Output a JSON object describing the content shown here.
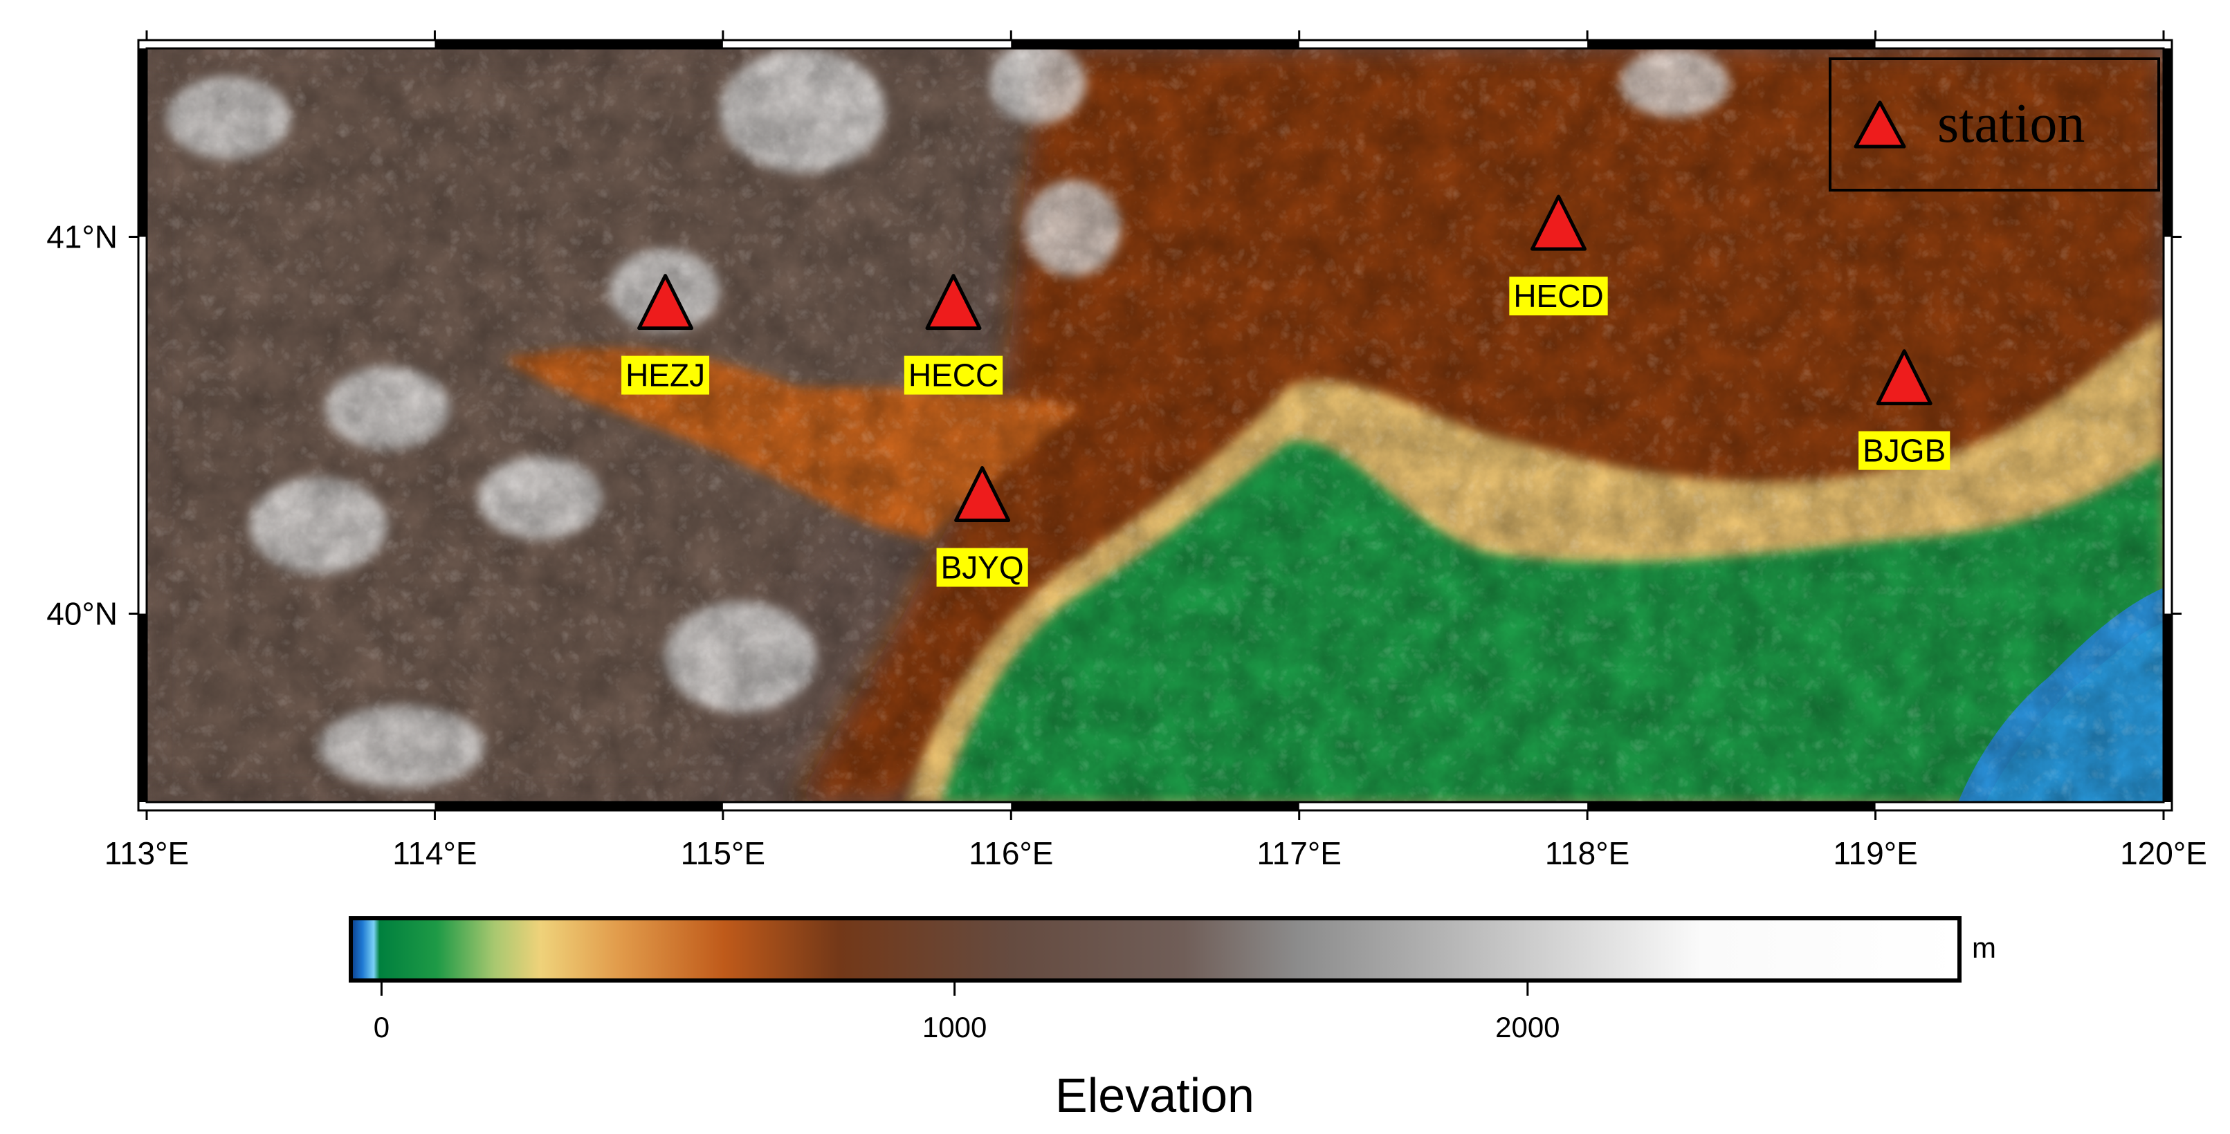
{
  "map": {
    "lon_range": [
      113,
      120
    ],
    "lat_range": [
      39.5,
      41.5
    ],
    "lon_ticks": [
      {
        "value": 113,
        "label": "113°E"
      },
      {
        "value": 114,
        "label": "114°E"
      },
      {
        "value": 115,
        "label": "115°E"
      },
      {
        "value": 116,
        "label": "116°E"
      },
      {
        "value": 117,
        "label": "117°E"
      },
      {
        "value": 118,
        "label": "118°E"
      },
      {
        "value": 119,
        "label": "119°E"
      },
      {
        "value": 120,
        "label": "120°E"
      }
    ],
    "lat_ticks": [
      {
        "value": 41,
        "label": "41°N"
      },
      {
        "value": 40,
        "label": "40°N"
      }
    ],
    "stations": [
      {
        "name": "HEZJ",
        "lon": 114.8,
        "lat": 40.82
      },
      {
        "name": "HECC",
        "lon": 115.8,
        "lat": 40.82
      },
      {
        "name": "BJYQ",
        "lon": 115.9,
        "lat": 40.31
      },
      {
        "name": "HECD",
        "lon": 117.9,
        "lat": 41.03
      },
      {
        "name": "BJGB",
        "lon": 119.1,
        "lat": 40.62
      }
    ],
    "legend": {
      "symbol": "red-triangle",
      "label": "station"
    },
    "colors": {
      "station_fill": "#ee1c1c",
      "label_bg": "#ffff00",
      "lowland": "#1a9a47",
      "foothill": "#e0b060",
      "mountain": "#8a3a10",
      "highland": "#6b5850",
      "summit": "#e6e6e6",
      "sea": "#2a90d8"
    }
  },
  "colorbar": {
    "title": "Elevation",
    "unit": "m",
    "range": [
      -50,
      2750
    ],
    "ticks": [
      {
        "value": 0,
        "label": "0"
      },
      {
        "value": 1000,
        "label": "1000"
      },
      {
        "value": 2000,
        "label": "2000"
      }
    ],
    "stops": [
      {
        "value": -50,
        "color": "#0a3d8a"
      },
      {
        "value": -30,
        "color": "#1e78d2"
      },
      {
        "value": -10,
        "color": "#7ad2f5"
      },
      {
        "value": 0,
        "color": "#00803e"
      },
      {
        "value": 100,
        "color": "#1e9a46"
      },
      {
        "value": 200,
        "color": "#a8c870"
      },
      {
        "value": 280,
        "color": "#efd27a"
      },
      {
        "value": 420,
        "color": "#e19a4a"
      },
      {
        "value": 600,
        "color": "#bf5a1a"
      },
      {
        "value": 800,
        "color": "#733818"
      },
      {
        "value": 1100,
        "color": "#654b40"
      },
      {
        "value": 1400,
        "color": "#705e58"
      },
      {
        "value": 1600,
        "color": "#8c8c8c"
      },
      {
        "value": 2000,
        "color": "#cccccc"
      },
      {
        "value": 2300,
        "color": "#fafafa"
      },
      {
        "value": 2750,
        "color": "#ffffff"
      }
    ]
  }
}
